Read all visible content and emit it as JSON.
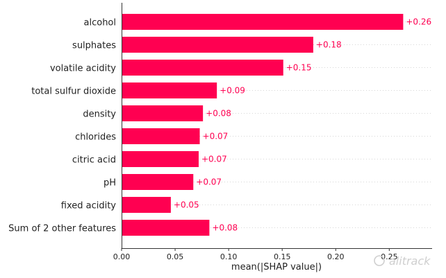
{
  "chart_data": {
    "type": "bar",
    "orientation": "horizontal",
    "categories": [
      "alcohol",
      "sulphates",
      "volatile acidity",
      "total sulfur dioxide",
      "density",
      "chlorides",
      "citric acid",
      "pH",
      "fixed acidity",
      "Sum of 2 other features"
    ],
    "values": [
      0.263,
      0.179,
      0.151,
      0.089,
      0.076,
      0.073,
      0.072,
      0.067,
      0.046,
      0.082
    ],
    "value_labels": [
      "+0.26",
      "+0.18",
      "+0.15",
      "+0.09",
      "+0.08",
      "+0.07",
      "+0.07",
      "+0.07",
      "+0.05",
      "+0.08"
    ],
    "xlabel": "mean(|SHAP value|)",
    "xlim": [
      0,
      0.29
    ],
    "xticks": [
      0.0,
      0.05,
      0.1,
      0.15,
      0.2,
      0.25
    ],
    "xtick_labels": [
      "0.00",
      "0.05",
      "0.10",
      "0.15",
      "0.20",
      "0.25"
    ],
    "bar_color": "#ff0051",
    "grid": "dotted-horizontal"
  },
  "watermark": "alitrack"
}
